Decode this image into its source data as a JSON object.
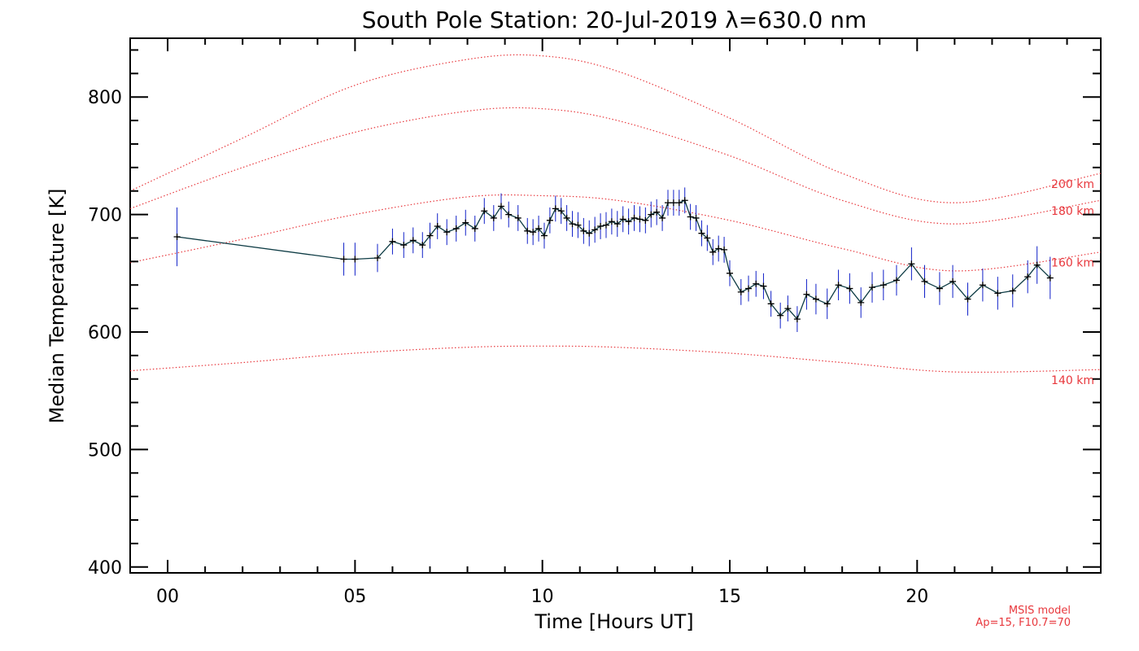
{
  "chart_data": {
    "type": "line",
    "title": "South Pole Station: 20-Jul-2019 λ=630.0 nm",
    "xlabel": "Time [Hours UT]",
    "ylabel": "Median Temperature [K]",
    "xlim": [
      -1,
      24.9
    ],
    "ylim": [
      395,
      850
    ],
    "x_ticks": [
      0,
      5,
      10,
      15,
      20
    ],
    "x_tick_labels": [
      "00",
      "05",
      "10",
      "15",
      "20"
    ],
    "y_ticks": [
      400,
      500,
      600,
      700,
      800
    ],
    "y_tick_labels": [
      "400",
      "500",
      "600",
      "700",
      "800"
    ],
    "measurements": {
      "name": "Median temperature",
      "color": "#1020c8",
      "line_color": "#0d3b44",
      "x": [
        0.25,
        4.7,
        5.0,
        5.6,
        6.0,
        6.3,
        6.55,
        6.8,
        7.0,
        7.2,
        7.45,
        7.7,
        7.95,
        8.2,
        8.45,
        8.7,
        8.9,
        9.1,
        9.35,
        9.6,
        9.75,
        9.9,
        10.05,
        10.2,
        10.35,
        10.5,
        10.65,
        10.8,
        10.95,
        11.1,
        11.25,
        11.4,
        11.55,
        11.7,
        11.85,
        12.0,
        12.15,
        12.3,
        12.45,
        12.6,
        12.75,
        12.9,
        13.05,
        13.2,
        13.35,
        13.5,
        13.65,
        13.8,
        13.95,
        14.1,
        14.25,
        14.4,
        14.55,
        14.7,
        14.85,
        15.0,
        15.3,
        15.5,
        15.7,
        15.9,
        16.1,
        16.35,
        16.55,
        16.8,
        17.05,
        17.3,
        17.6,
        17.9,
        18.2,
        18.5,
        18.8,
        19.1,
        19.45,
        19.85,
        20.2,
        20.6,
        20.95,
        21.35,
        21.75,
        22.15,
        22.55,
        22.95,
        23.2,
        23.55
      ],
      "y": [
        681,
        662,
        662,
        663,
        677,
        674,
        678,
        674,
        682,
        690,
        685,
        688,
        693,
        688,
        703,
        697,
        707,
        700,
        697,
        686,
        685,
        688,
        682,
        695,
        705,
        703,
        697,
        692,
        691,
        686,
        684,
        687,
        690,
        691,
        694,
        692,
        696,
        694,
        697,
        696,
        695,
        700,
        702,
        697,
        710,
        710,
        710,
        712,
        698,
        697,
        684,
        680,
        668,
        671,
        670,
        650,
        634,
        637,
        641,
        639,
        624,
        614,
        620,
        611,
        632,
        628,
        624,
        640,
        637,
        625,
        638,
        640,
        644,
        658,
        643,
        637,
        643,
        628,
        640,
        633,
        635,
        647,
        657,
        646
      ],
      "error": [
        25,
        14,
        14,
        12,
        11,
        11,
        11,
        11,
        11,
        11,
        11,
        11,
        11,
        11,
        11,
        11,
        11,
        11,
        11,
        11,
        11,
        11,
        11,
        11,
        11,
        11,
        11,
        11,
        11,
        11,
        11,
        11,
        11,
        11,
        11,
        11,
        11,
        11,
        11,
        11,
        11,
        11,
        11,
        11,
        11,
        11,
        11,
        11,
        11,
        11,
        11,
        11,
        11,
        11,
        11,
        11,
        11,
        11,
        11,
        11,
        11,
        11,
        11,
        11,
        13,
        13,
        13,
        13,
        13,
        13,
        13,
        13,
        13,
        14,
        14,
        14,
        14,
        14,
        14,
        14,
        14,
        14,
        16,
        18
      ]
    },
    "model_curves": [
      {
        "label": "140 km",
        "color": "#e8383d",
        "x": [
          -1,
          2,
          5,
          8,
          10,
          12,
          15,
          18,
          21,
          24.9
        ],
        "y": [
          567,
          574,
          582,
          587,
          588,
          587,
          582,
          574,
          566,
          568
        ]
      },
      {
        "label": "160 km",
        "color": "#e8383d",
        "x": [
          -1,
          2,
          5,
          8,
          10,
          12,
          15,
          18,
          21,
          24.9
        ],
        "y": [
          659,
          679,
          700,
          715,
          716,
          712,
          695,
          671,
          652,
          668
        ]
      },
      {
        "label": "180 km",
        "color": "#e8383d",
        "x": [
          -1,
          2,
          5,
          8,
          10,
          12,
          15,
          18,
          21,
          24.9
        ],
        "y": [
          705,
          740,
          770,
          788,
          790,
          780,
          750,
          712,
          692,
          712
        ]
      },
      {
        "label": "200 km",
        "color": "#e8383d",
        "x": [
          -1,
          2,
          5,
          8,
          10,
          12,
          15,
          18,
          21,
          24.9
        ],
        "y": [
          720,
          765,
          810,
          832,
          835,
          822,
          782,
          735,
          710,
          735
        ]
      }
    ],
    "annotation": {
      "line1": "MSIS model",
      "line2": "Ap=15, F10.7=70",
      "color": "#e8383d"
    }
  }
}
